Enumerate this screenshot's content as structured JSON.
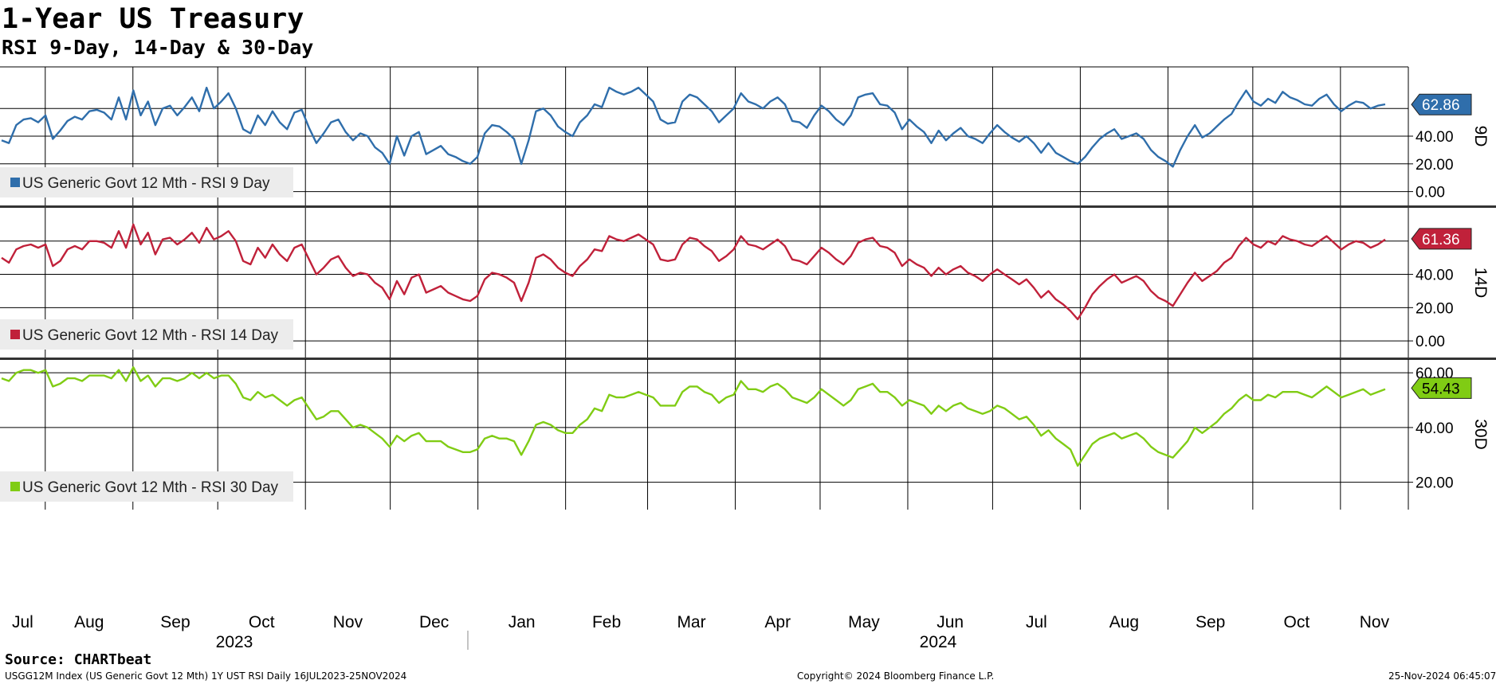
{
  "title": "1-Year US Treasury",
  "subtitle": "RSI 9-Day, 14-Day & 30-Day",
  "footer": {
    "source": "Source: CHARTbeat",
    "ticker_info": "USGG12M Index (US Generic Govt 12 Mth) 1Y UST RSI  Daily 16JUL2023-25NOV2024",
    "copyright": "Copyright© 2024 Bloomberg Finance L.P.",
    "timestamp": "25-Nov-2024 06:45:07"
  },
  "chart_data": {
    "type": "line",
    "x_range": [
      "2023-07-16",
      "2024-11-25"
    ],
    "x_tick_labels": [
      "Jul",
      "Aug",
      "Sep",
      "Oct",
      "Nov",
      "Dec",
      "Jan",
      "Feb",
      "Mar",
      "Apr",
      "May",
      "Jun",
      "Jul",
      "Aug",
      "Sep",
      "Oct",
      "Nov"
    ],
    "year_labels": [
      "2023",
      "2024"
    ],
    "grid": true,
    "panels": [
      {
        "axis_label": "9D",
        "ylim": [
          -10,
          90
        ],
        "yticks": [
          "0.00",
          "20.00",
          "40.00"
        ],
        "series": {
          "name": "US Generic Govt 12 Mth - RSI 9 Day",
          "color": "#2f6eab",
          "last_value": "62.86",
          "values": [
            37,
            35,
            48,
            52,
            53,
            50,
            55,
            38,
            44,
            51,
            54,
            52,
            58,
            59,
            57,
            52,
            68,
            52,
            73,
            55,
            65,
            48,
            60,
            62,
            55,
            61,
            68,
            58,
            75,
            60,
            65,
            71,
            60,
            45,
            42,
            55,
            48,
            58,
            50,
            45,
            57,
            59,
            46,
            35,
            42,
            50,
            52,
            43,
            37,
            42,
            40,
            32,
            28,
            20,
            40,
            26,
            40,
            43,
            27,
            30,
            33,
            27,
            25,
            22,
            20,
            25,
            42,
            48,
            47,
            43,
            38,
            20,
            37,
            58,
            60,
            55,
            47,
            43,
            40,
            50,
            55,
            63,
            61,
            75,
            72,
            70,
            72,
            75,
            70,
            65,
            52,
            49,
            50,
            65,
            70,
            68,
            63,
            58,
            50,
            55,
            60,
            71,
            65,
            63,
            60,
            65,
            68,
            63,
            51,
            50,
            46,
            55,
            62,
            58,
            52,
            48,
            55,
            68,
            70,
            71,
            63,
            62,
            57,
            45,
            52,
            47,
            43,
            35,
            44,
            37,
            42,
            46,
            40,
            38,
            35,
            42,
            48,
            43,
            39,
            36,
            40,
            35,
            28,
            35,
            28,
            25,
            22,
            20,
            25,
            32,
            38,
            42,
            45,
            38,
            40,
            42,
            38,
            30,
            25,
            22,
            18,
            30,
            40,
            48,
            39,
            42,
            47,
            52,
            56,
            65,
            73,
            65,
            62,
            67,
            64,
            72,
            68,
            66,
            63,
            62,
            67,
            70,
            63,
            58,
            62,
            65,
            64,
            60,
            62,
            63
          ]
        }
      },
      {
        "axis_label": "14D",
        "ylim": [
          -10,
          80
        ],
        "yticks": [
          "0.00",
          "20.00",
          "40.00"
        ],
        "series": {
          "name": "US Generic Govt 12 Mth - RSI 14 Day",
          "color": "#c0213a",
          "last_value": "61.36",
          "values": [
            50,
            47,
            55,
            57,
            58,
            56,
            58,
            45,
            48,
            55,
            57,
            55,
            60,
            60,
            59,
            56,
            66,
            56,
            70,
            58,
            65,
            52,
            61,
            62,
            58,
            61,
            65,
            59,
            68,
            61,
            63,
            66,
            60,
            48,
            46,
            56,
            50,
            58,
            52,
            48,
            56,
            58,
            49,
            40,
            44,
            49,
            51,
            44,
            39,
            41,
            40,
            35,
            32,
            25,
            36,
            28,
            38,
            40,
            29,
            31,
            33,
            29,
            27,
            25,
            24,
            27,
            37,
            41,
            40,
            38,
            35,
            24,
            35,
            50,
            52,
            49,
            44,
            41,
            39,
            45,
            49,
            55,
            54,
            63,
            61,
            60,
            62,
            64,
            61,
            58,
            49,
            48,
            49,
            58,
            62,
            61,
            57,
            54,
            48,
            51,
            55,
            63,
            58,
            57,
            55,
            58,
            61,
            57,
            49,
            48,
            46,
            51,
            56,
            53,
            49,
            46,
            51,
            59,
            61,
            62,
            57,
            56,
            53,
            45,
            49,
            46,
            44,
            39,
            44,
            40,
            43,
            45,
            41,
            39,
            36,
            40,
            43,
            40,
            37,
            34,
            37,
            32,
            26,
            30,
            25,
            22,
            18,
            13,
            20,
            28,
            33,
            37,
            40,
            35,
            37,
            39,
            36,
            30,
            26,
            24,
            21,
            28,
            35,
            41,
            36,
            39,
            42,
            47,
            50,
            57,
            62,
            58,
            56,
            60,
            58,
            63,
            61,
            60,
            58,
            57,
            60,
            63,
            59,
            55,
            58,
            60,
            59,
            56,
            58,
            61
          ]
        }
      },
      {
        "axis_label": "30D",
        "ylim": [
          10,
          65
        ],
        "yticks": [
          "20.00",
          "40.00",
          "60.00"
        ],
        "series": {
          "name": "US Generic Govt 12 Mth - RSI 30 Day",
          "color": "#80cc14",
          "last_value": "54.43",
          "values": [
            58,
            57,
            60,
            61,
            61,
            60,
            61,
            55,
            56,
            58,
            58,
            57,
            59,
            59,
            59,
            58,
            61,
            57,
            62,
            57,
            59,
            55,
            58,
            58,
            57,
            58,
            60,
            58,
            60,
            58,
            59,
            59,
            56,
            51,
            50,
            53,
            51,
            52,
            50,
            48,
            50,
            51,
            47,
            43,
            44,
            46,
            46,
            43,
            40,
            41,
            40,
            38,
            36,
            33,
            37,
            35,
            37,
            38,
            35,
            35,
            35,
            33,
            32,
            31,
            31,
            32,
            36,
            37,
            36,
            36,
            35,
            30,
            35,
            41,
            42,
            41,
            39,
            38,
            38,
            41,
            43,
            47,
            46,
            52,
            51,
            51,
            52,
            53,
            52,
            51,
            48,
            48,
            48,
            53,
            55,
            55,
            53,
            52,
            49,
            51,
            52,
            57,
            54,
            54,
            53,
            55,
            56,
            54,
            51,
            50,
            49,
            51,
            54,
            52,
            50,
            48,
            50,
            54,
            55,
            56,
            53,
            53,
            51,
            48,
            50,
            49,
            48,
            45,
            48,
            46,
            48,
            49,
            47,
            46,
            45,
            46,
            48,
            47,
            45,
            43,
            44,
            41,
            37,
            39,
            36,
            34,
            32,
            26,
            30,
            34,
            36,
            37,
            38,
            36,
            37,
            38,
            36,
            33,
            31,
            30,
            29,
            32,
            35,
            40,
            38,
            40,
            42,
            45,
            47,
            50,
            52,
            50,
            50,
            52,
            51,
            53,
            53,
            53,
            52,
            51,
            53,
            55,
            53,
            51,
            52,
            53,
            54,
            52,
            53,
            54
          ]
        }
      }
    ]
  }
}
